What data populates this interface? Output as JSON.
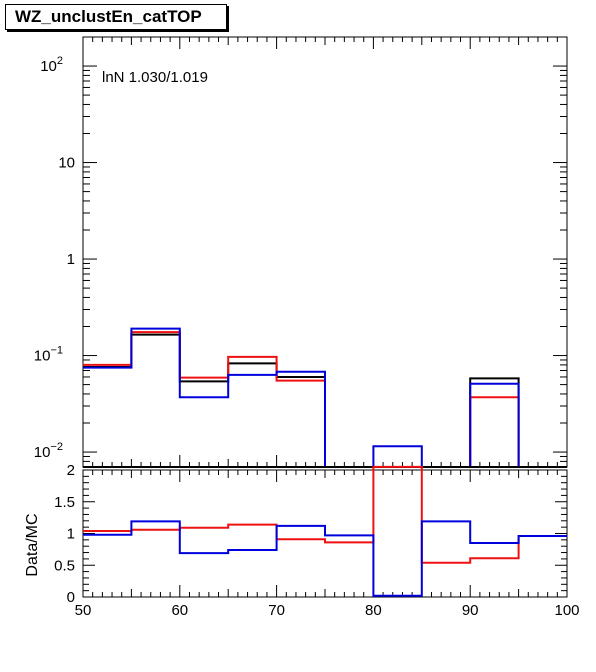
{
  "page": {
    "title": "WZ_unclustEn_catTOP"
  },
  "chart_data": [
    {
      "type": "line",
      "panel": "main",
      "yscale": "log",
      "xlim": [
        50,
        100
      ],
      "ylim": [
        0.007,
        200
      ],
      "annotation": "lnN 1.030/1.019",
      "y_ticks": [
        {
          "value": 0.01,
          "base": "10",
          "exp": "−2"
        },
        {
          "value": 0.1,
          "base": "10",
          "exp": "−1"
        },
        {
          "value": 1,
          "base": "1",
          "exp": ""
        },
        {
          "value": 10,
          "base": "10",
          "exp": ""
        },
        {
          "value": 100,
          "base": "10",
          "exp": "2"
        }
      ],
      "bin_edges": [
        50,
        55,
        60,
        65,
        70,
        75,
        80,
        85,
        90,
        95,
        100
      ],
      "series": [
        {
          "color": "#000000",
          "values": [
            0.076,
            0.165,
            0.054,
            0.083,
            0.06,
            0,
            0,
            0,
            0.058,
            0
          ]
        },
        {
          "color": "#ee1111",
          "values": [
            0.08,
            0.175,
            0.059,
            0.097,
            0.055,
            0,
            0,
            0,
            0.037,
            0
          ]
        },
        {
          "color": "#0000dd",
          "values": [
            0.075,
            0.19,
            0.037,
            0.063,
            0.068,
            0,
            0.0115,
            0,
            0.051,
            0
          ]
        }
      ]
    },
    {
      "type": "line",
      "panel": "ratio",
      "xlim": [
        50,
        100
      ],
      "ylim": [
        0,
        2
      ],
      "ylabel": "Data/MC",
      "x_ticks": [
        "50",
        "60",
        "70",
        "80",
        "90",
        "100"
      ],
      "y_ticks": [
        "0",
        "0.5",
        "1",
        "1.5",
        "2"
      ],
      "bin_edges": [
        50,
        55,
        60,
        65,
        70,
        75,
        80,
        85,
        90,
        95,
        100
      ],
      "series": [
        {
          "color": "#ee1111",
          "values": [
            1.04,
            1.06,
            1.09,
            1.14,
            0.91,
            0.86,
            2.05,
            0.54,
            0.61,
            0.96
          ]
        },
        {
          "color": "#0000dd",
          "values": [
            0.98,
            1.19,
            0.69,
            0.74,
            1.12,
            0.97,
            0.02,
            1.19,
            0.85,
            0.96
          ]
        }
      ]
    }
  ]
}
